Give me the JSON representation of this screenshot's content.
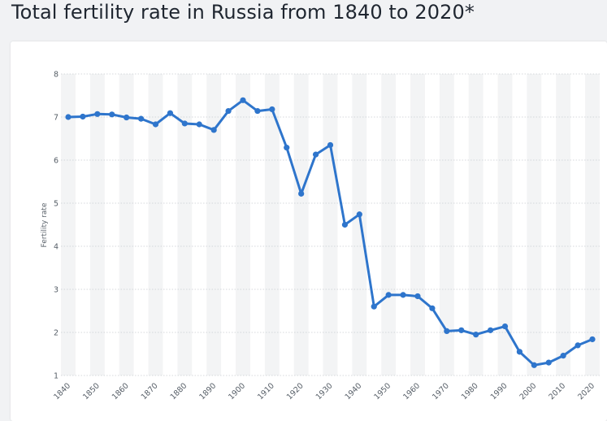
{
  "page": {
    "title": "Total fertility rate in Russia from 1840 to 2020*"
  },
  "colors": {
    "series": "#2e75cc",
    "band": "#f3f4f5",
    "grid": "#c8ccd0",
    "background": "#f1f2f4",
    "card": "#ffffff"
  },
  "chart_data": {
    "type": "line",
    "title": "Total fertility rate in Russia from 1840 to 2020*",
    "xlabel": "",
    "ylabel": "Fertility rate",
    "xlim": [
      1840,
      2020
    ],
    "ylim": [
      1,
      8
    ],
    "y_ticks": [
      1,
      2,
      3,
      4,
      5,
      6,
      7,
      8
    ],
    "x_ticks": [
      "1840",
      "1850",
      "1860",
      "1870",
      "1880",
      "1890",
      "1900",
      "1910",
      "1920",
      "1930",
      "1940",
      "1950",
      "1960",
      "1970",
      "1980",
      "1990",
      "2000",
      "2010",
      "2020"
    ],
    "grid": true,
    "legend": "none",
    "series": [
      {
        "color": "#2e75cc",
        "x": [
          1840,
          1845,
          1850,
          1855,
          1860,
          1865,
          1870,
          1875,
          1880,
          1885,
          1890,
          1895,
          1900,
          1905,
          1910,
          1915,
          1920,
          1925,
          1930,
          1935,
          1940,
          1945,
          1950,
          1955,
          1960,
          1965,
          1970,
          1975,
          1980,
          1985,
          1990,
          1995,
          2000,
          2005,
          2010,
          2015,
          2020
        ],
        "values": [
          7.0,
          7.01,
          7.07,
          7.06,
          6.99,
          6.96,
          6.83,
          7.09,
          6.85,
          6.83,
          6.7,
          7.14,
          7.39,
          7.14,
          7.18,
          6.29,
          5.22,
          6.13,
          6.35,
          4.5,
          4.74,
          2.6,
          2.87,
          2.87,
          2.84,
          2.56,
          2.03,
          2.05,
          1.95,
          2.05,
          2.14,
          1.55,
          1.24,
          1.3,
          1.46,
          1.7,
          1.84
        ]
      }
    ]
  }
}
